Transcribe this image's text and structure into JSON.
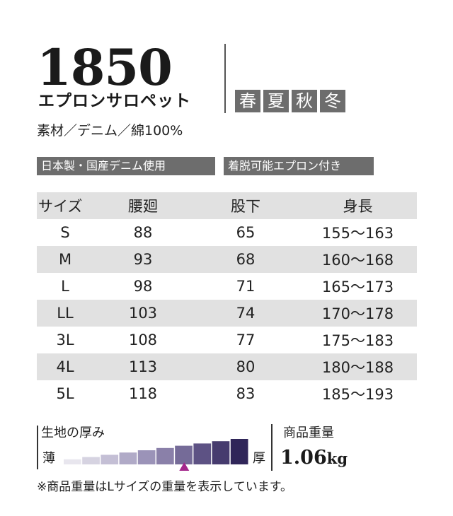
{
  "product": {
    "model_no": "1850",
    "name": "エプロンサロペット",
    "seasons": [
      "春",
      "夏",
      "秋",
      "冬"
    ],
    "material": "素材／デニム／綿100%"
  },
  "features": [
    "日本製・国産デニム使用",
    "着脱可能エプロン付き"
  ],
  "size_table": {
    "headers": [
      "サイズ",
      "腰廻",
      "股下",
      "身長"
    ],
    "rows": [
      [
        "S",
        "88",
        "65",
        "155～163"
      ],
      [
        "M",
        "93",
        "68",
        "160～168"
      ],
      [
        "L",
        "98",
        "71",
        "165～173"
      ],
      [
        "LL",
        "103",
        "74",
        "170～178"
      ],
      [
        "3L",
        "108",
        "77",
        "175～183"
      ],
      [
        "4L",
        "113",
        "80",
        "180～188"
      ],
      [
        "5L",
        "118",
        "83",
        "185～193"
      ]
    ]
  },
  "thickness": {
    "label": "生地の厚み",
    "thin_label": "薄",
    "thick_label": "厚",
    "levels": 10,
    "selected_level": 7,
    "colors": [
      "#e8e6ee",
      "#d6d3e1",
      "#c4bfd5",
      "#b0aac7",
      "#9b93b8",
      "#8a80a9",
      "#756b98",
      "#5d5284",
      "#463b6e",
      "#302659"
    ],
    "marker_color": "#a4288c"
  },
  "weight": {
    "label": "商品重量",
    "value": "1.06",
    "unit": "kg"
  },
  "note": "※商品重量はLサイズの重量を表示しています。"
}
